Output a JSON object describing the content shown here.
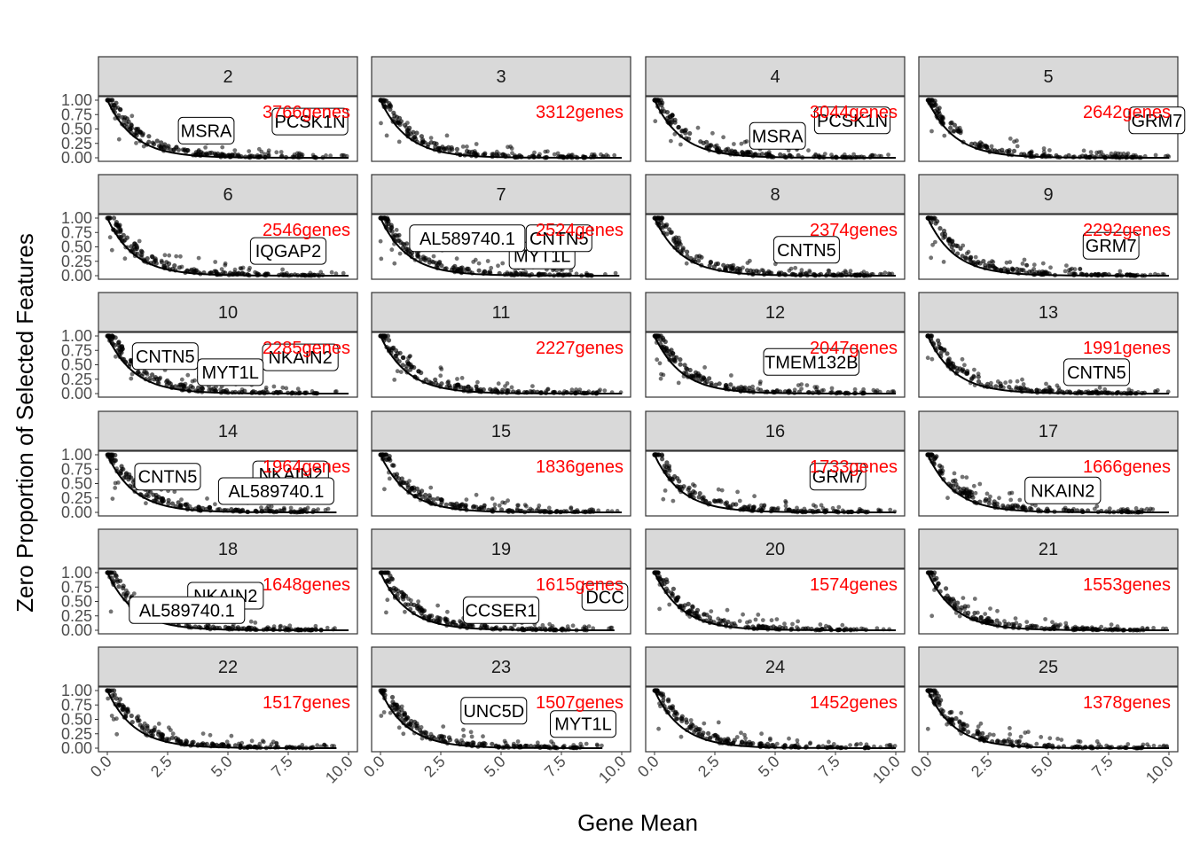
{
  "chart_data": {
    "type": "scatter",
    "xlabel": "Gene Mean",
    "ylabel": "Zero Proportion of Selected Features",
    "xlim": [
      0,
      10
    ],
    "ylim": [
      0,
      1
    ],
    "x_ticks": [
      "0.0",
      "2.5",
      "5.0",
      "7.5",
      "10.0"
    ],
    "y_ticks": [
      "0.00",
      "0.25",
      "0.50",
      "0.75",
      "1.00"
    ],
    "layout": "facet grid, 6 rows x 4 columns",
    "point_color": "#000000",
    "strip_color": "#d9d9d9",
    "count_color": "#ff0000",
    "panels": [
      {
        "facet": "2",
        "count_label": "3766genes",
        "max_x": 10.0,
        "labels": [
          {
            "text": "MSRA",
            "x": 4.1,
            "y": 0.47
          },
          {
            "text": "PCSK1N",
            "x": 8.4,
            "y": 0.63
          }
        ]
      },
      {
        "facet": "3",
        "count_label": "3312genes",
        "max_x": 10.0,
        "labels": []
      },
      {
        "facet": "4",
        "count_label": "3044genes",
        "max_x": 10.0,
        "labels": [
          {
            "text": "MSRA",
            "x": 5.1,
            "y": 0.38
          },
          {
            "text": "PCSK1N",
            "x": 8.2,
            "y": 0.65
          }
        ]
      },
      {
        "facet": "5",
        "count_label": "2642genes",
        "max_x": 10.0,
        "labels": [
          {
            "text": "GRM7",
            "x": 9.5,
            "y": 0.65
          }
        ]
      },
      {
        "facet": "6",
        "count_label": "2546genes",
        "max_x": 10.0,
        "labels": [
          {
            "text": "IQGAP2",
            "x": 7.5,
            "y": 0.43
          }
        ]
      },
      {
        "facet": "7",
        "count_label": "2524genes",
        "max_x": 9.9,
        "labels": [
          {
            "text": "MYT1L",
            "x": 6.7,
            "y": 0.35
          },
          {
            "text": "AL589740.1",
            "x": 3.6,
            "y": 0.65
          },
          {
            "text": "CNTN5",
            "x": 7.4,
            "y": 0.65
          }
        ]
      },
      {
        "facet": "8",
        "count_label": "2374genes",
        "max_x": 10.0,
        "labels": [
          {
            "text": "CNTN5",
            "x": 6.3,
            "y": 0.45
          }
        ]
      },
      {
        "facet": "9",
        "count_label": "2292genes",
        "max_x": 10.0,
        "labels": [
          {
            "text": "GRM7",
            "x": 7.6,
            "y": 0.52
          }
        ]
      },
      {
        "facet": "10",
        "count_label": "2285genes",
        "max_x": 10.0,
        "labels": [
          {
            "text": "NKAIN2",
            "x": 8.0,
            "y": 0.63
          },
          {
            "text": "CNTN5",
            "x": 2.4,
            "y": 0.65
          },
          {
            "text": "MYT1L",
            "x": 5.1,
            "y": 0.37
          }
        ]
      },
      {
        "facet": "11",
        "count_label": "2227genes",
        "max_x": 10.0,
        "labels": []
      },
      {
        "facet": "12",
        "count_label": "2047genes",
        "max_x": 10.0,
        "labels": [
          {
            "text": "TMEM132B",
            "x": 6.5,
            "y": 0.55
          }
        ]
      },
      {
        "facet": "13",
        "count_label": "1991genes",
        "max_x": 10.0,
        "labels": [
          {
            "text": "CNTN5",
            "x": 7.0,
            "y": 0.37
          }
        ]
      },
      {
        "facet": "14",
        "count_label": "1964genes",
        "max_x": 9.5,
        "labels": [
          {
            "text": "NKAIN2",
            "x": 7.6,
            "y": 0.66
          },
          {
            "text": "CNTN5",
            "x": 2.5,
            "y": 0.62
          },
          {
            "text": "AL589740.1",
            "x": 7.0,
            "y": 0.37
          }
        ]
      },
      {
        "facet": "15",
        "count_label": "1836genes",
        "max_x": 10.0,
        "labels": []
      },
      {
        "facet": "16",
        "count_label": "1733genes",
        "max_x": 10.0,
        "labels": [
          {
            "text": "GRM7",
            "x": 7.6,
            "y": 0.62
          }
        ]
      },
      {
        "facet": "17",
        "count_label": "1666genes",
        "max_x": 10.0,
        "labels": [
          {
            "text": "NKAIN2",
            "x": 5.6,
            "y": 0.38
          }
        ]
      },
      {
        "facet": "18",
        "count_label": "1648genes",
        "max_x": 10.0,
        "labels": [
          {
            "text": "NKAIN2",
            "x": 4.9,
            "y": 0.6
          },
          {
            "text": "AL589740.1",
            "x": 3.3,
            "y": 0.35
          }
        ]
      },
      {
        "facet": "19",
        "count_label": "1615genes",
        "max_x": 9.7,
        "labels": [
          {
            "text": "DCC",
            "x": 9.3,
            "y": 0.58
          },
          {
            "text": "CCSER1",
            "x": 5.0,
            "y": 0.35
          }
        ]
      },
      {
        "facet": "20",
        "count_label": "1574genes",
        "max_x": 10.0,
        "labels": []
      },
      {
        "facet": "21",
        "count_label": "1553genes",
        "max_x": 10.0,
        "labels": []
      },
      {
        "facet": "22",
        "count_label": "1517genes",
        "max_x": 9.5,
        "labels": []
      },
      {
        "facet": "23",
        "count_label": "1507genes",
        "max_x": 9.2,
        "labels": [
          {
            "text": "UNC5D",
            "x": 4.7,
            "y": 0.65
          },
          {
            "text": "MYT1L",
            "x": 8.4,
            "y": 0.42
          }
        ]
      },
      {
        "facet": "24",
        "count_label": "1452genes",
        "max_x": 10.0,
        "labels": []
      },
      {
        "facet": "25",
        "count_label": "1378genes",
        "max_x": 10.0,
        "labels": []
      }
    ]
  }
}
